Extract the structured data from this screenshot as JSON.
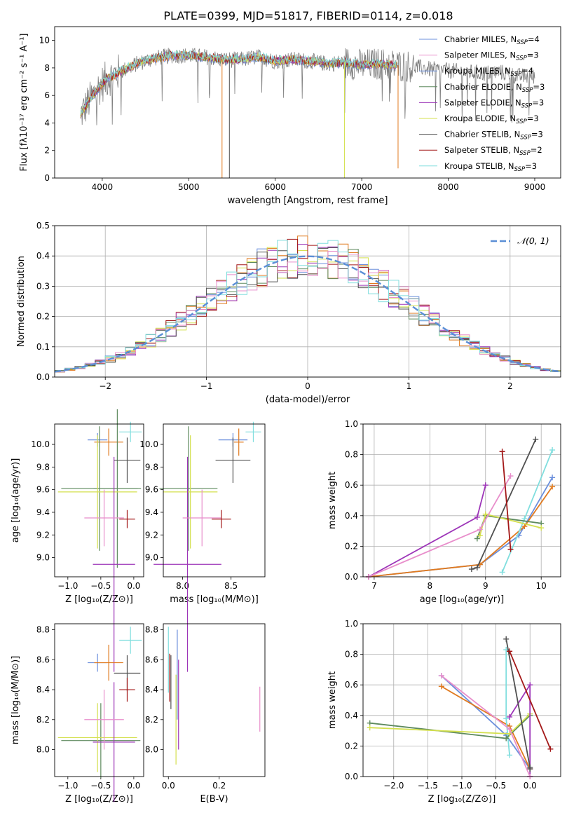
{
  "title": "PLATE=0399, MJD=51817, FIBERID=0114, z=0.018",
  "colors": {
    "Chabrier MILES": "#6b8fdc",
    "Salpeter MILES": "#e07a1f",
    "Kroupa MILES": "#7fe0e0",
    "Chabrier ELODIE": "#5e8a5e",
    "Salpeter ELODIE": "#9d35b8",
    "Kroupa ELODIE": "#d4e04e",
    "Chabrier STELIB": "#505050",
    "Salpeter STELIB": "#a31818",
    "Kroupa STELIB": "#80dede",
    "gaussian": "#5b8fd6",
    "data": "#808080"
  },
  "chart_data": [
    {
      "id": "spectrum",
      "type": "line",
      "xlabel": "wavelength [Angstrom, rest frame]",
      "ylabel": "Flux [fλ10⁻¹⁷ erg cm⁻² s⁻¹ A⁻¹]",
      "xlim": [
        3450,
        9300
      ],
      "ylim": [
        0,
        11
      ],
      "xticks": [
        4000,
        5000,
        6000,
        7000,
        8000,
        9000
      ],
      "yticks": [
        0,
        2,
        4,
        6,
        8,
        10
      ],
      "legend_position": "top-right",
      "legend": [
        {
          "label": "Chabrier MILES, N",
          "sub": "SSP",
          "suffix": "=4",
          "color": "#6b8fdc"
        },
        {
          "label": "Salpeter MILES, N",
          "sub": "SSP",
          "suffix": "=3",
          "color": "#e88ecb"
        },
        {
          "label": "Kroupa MILES, N",
          "sub": "SSP",
          "suffix": "=4",
          "color": "#6b8fdc"
        },
        {
          "label": "Chabrier ELODIE, N",
          "sub": "SSP",
          "suffix": "=3",
          "color": "#5e8a5e"
        },
        {
          "label": "Salpeter ELODIE, N",
          "sub": "SSP",
          "suffix": "=3",
          "color": "#9d35b8"
        },
        {
          "label": "Kroupa ELODIE, N",
          "sub": "SSP",
          "suffix": "=3",
          "color": "#d4e04e"
        },
        {
          "label": "Chabrier STELIB, N",
          "sub": "SSP",
          "suffix": "=3",
          "color": "#505050"
        },
        {
          "label": "Salpeter STELIB, N",
          "sub": "SSP",
          "suffix": "=2",
          "color": "#a31818"
        },
        {
          "label": "Kroupa STELIB, N",
          "sub": "SSP",
          "suffix": "=3",
          "color": "#80dede"
        }
      ],
      "continuum_x": [
        3750,
        3850,
        3950,
        4050,
        4200,
        4400,
        4600,
        4800,
        5000,
        5200,
        5400,
        5600,
        5800,
        6000,
        6200,
        6400,
        6600,
        6800,
        7000,
        7200,
        7400,
        7600,
        7800,
        8000,
        8200,
        8400,
        8600,
        8800,
        9000
      ],
      "continuum_y": [
        4.6,
        5.6,
        6.5,
        7.2,
        7.7,
        8.3,
        8.7,
        8.9,
        8.9,
        8.8,
        8.6,
        8.6,
        8.8,
        8.5,
        8.6,
        8.5,
        8.3,
        8.4,
        8.2,
        8.3,
        8.2,
        8.1,
        7.9,
        7.8,
        7.7,
        7.6,
        7.7,
        7.4,
        7.4
      ],
      "model_x_end": [
        7420,
        7420,
        7420,
        7420,
        7420,
        7420,
        7420,
        7420,
        7420
      ],
      "spikes": [
        {
          "x": 5385,
          "y0": 0,
          "color": "#e07a1f"
        },
        {
          "x": 5470,
          "y0": 0,
          "color": "#505050"
        },
        {
          "x": 6800,
          "y0": 0,
          "color": "#d4e04e"
        },
        {
          "x": 7420,
          "y0": 0.7,
          "color": "#e07a1f"
        }
      ]
    },
    {
      "id": "residuals",
      "type": "histogram",
      "xlabel": "(data-model)/error",
      "ylabel": "Normed distribution",
      "xlim": [
        -2.5,
        2.5
      ],
      "ylim": [
        0,
        0.5
      ],
      "xticks": [
        -2,
        -1,
        0,
        1,
        2
      ],
      "yticks": [
        0.0,
        0.1,
        0.2,
        0.3,
        0.4,
        0.5
      ],
      "grid": true,
      "legend_position": "top-right",
      "legend_label": "𝒩(0, 1)",
      "bin_width": 0.1
    },
    {
      "id": "age-Z",
      "type": "scatter",
      "xlabel": "Z [log₁₀(Z/Z⊙)]",
      "ylabel": "age  [log₁₀(age/yr)]",
      "xlim": [
        -1.2,
        0.15
      ],
      "ylim": [
        8.83,
        10.18
      ],
      "xticks": [
        -1.0,
        -0.5,
        0.0
      ],
      "yticks": [
        9.0,
        9.2,
        9.4,
        9.6,
        9.8,
        10.0
      ],
      "points": [
        {
          "x": -0.55,
          "y": 10.04,
          "xerr": 0.15,
          "yerr": 0.06,
          "color": "#6b8fdc"
        },
        {
          "x": -0.38,
          "y": 10.02,
          "xerr": 0.22,
          "yerr": 0.12,
          "color": "#e07a1f"
        },
        {
          "x": -0.05,
          "y": 10.11,
          "xerr": 0.17,
          "yerr": 0.09,
          "color": "#80dede"
        },
        {
          "x": -0.52,
          "y": 9.61,
          "xerr": 0.58,
          "yerr": 0.55,
          "color": "#5e8a5e"
        },
        {
          "x": -0.25,
          "y": 9.61,
          "xerr": 0.36,
          "yerr": 0.7,
          "color": "#5e8a5e"
        },
        {
          "x": -0.55,
          "y": 9.58,
          "xerr": 0.6,
          "yerr": 0.5,
          "color": "#d4e04e"
        },
        {
          "x": -0.3,
          "y": 8.94,
          "xerr": 0.32,
          "yerr": 0.95,
          "color": "#9d35b8"
        },
        {
          "x": -0.1,
          "y": 9.86,
          "xerr": 0.2,
          "yerr": 0.2,
          "color": "#505050"
        },
        {
          "x": -0.45,
          "y": 9.35,
          "xerr": 0.3,
          "yerr": 0.25,
          "color": "#e88ecb"
        },
        {
          "x": -0.1,
          "y": 9.34,
          "xerr": 0.12,
          "yerr": 0.08,
          "color": "#a31818"
        }
      ]
    },
    {
      "id": "age-mass",
      "type": "scatter",
      "xlabel": "mass [log₁₀(M/M⊙)]",
      "ylabel": "",
      "xlim": [
        7.8,
        8.85
      ],
      "ylim": [
        8.83,
        10.18
      ],
      "xticks": [
        8.0,
        8.5
      ],
      "yticks": [
        9.0,
        9.2,
        9.4,
        9.6,
        9.8,
        10.0
      ],
      "points": [
        {
          "x": 8.52,
          "y": 10.04,
          "xerr": 0.15,
          "yerr": 0.06,
          "color": "#6b8fdc"
        },
        {
          "x": 8.58,
          "y": 10.02,
          "xerr": 0.05,
          "yerr": 0.12,
          "color": "#e07a1f"
        },
        {
          "x": 8.73,
          "y": 10.11,
          "xerr": 0.08,
          "yerr": 0.09,
          "color": "#80dede"
        },
        {
          "x": 8.06,
          "y": 9.61,
          "xerr": 0.3,
          "yerr": 0.55,
          "color": "#5e8a5e"
        },
        {
          "x": 8.08,
          "y": 9.58,
          "xerr": 0.28,
          "yerr": 0.5,
          "color": "#d4e04e"
        },
        {
          "x": 8.05,
          "y": 8.94,
          "xerr": 0.35,
          "yerr": 0.95,
          "color": "#9d35b8"
        },
        {
          "x": 8.52,
          "y": 9.86,
          "xerr": 0.18,
          "yerr": 0.2,
          "color": "#505050"
        },
        {
          "x": 8.2,
          "y": 9.35,
          "xerr": 0.2,
          "yerr": 0.25,
          "color": "#e88ecb"
        },
        {
          "x": 8.4,
          "y": 9.34,
          "xerr": 0.1,
          "yerr": 0.08,
          "color": "#a31818"
        }
      ]
    },
    {
      "id": "weight-age",
      "type": "line",
      "xlabel": "age  [log₁₀(age/yr)]",
      "ylabel": "mass weight",
      "xlim": [
        6.8,
        10.35
      ],
      "ylim": [
        0,
        1.0
      ],
      "xticks": [
        7,
        8,
        9,
        10
      ],
      "yticks": [
        0.0,
        0.2,
        0.4,
        0.6,
        0.8,
        1.0
      ],
      "grid": true,
      "series": [
        {
          "color": "#6b8fdc",
          "x": [
            6.9,
            8.9,
            9.6,
            10.2
          ],
          "y": [
            0.0,
            0.08,
            0.27,
            0.65
          ]
        },
        {
          "color": "#e07a1f",
          "x": [
            6.9,
            8.9,
            9.7,
            10.2
          ],
          "y": [
            0.0,
            0.08,
            0.33,
            0.59
          ]
        },
        {
          "color": "#80dede",
          "x": [
            9.3,
            9.7,
            10.2
          ],
          "y": [
            0.03,
            0.38,
            0.83
          ]
        },
        {
          "color": "#5e8a5e",
          "x": [
            8.85,
            9.0,
            10.0
          ],
          "y": [
            0.25,
            0.4,
            0.35
          ]
        },
        {
          "color": "#d4e04e",
          "x": [
            8.9,
            9.0,
            10.0
          ],
          "y": [
            0.27,
            0.41,
            0.32
          ]
        },
        {
          "color": "#9d35b8",
          "x": [
            6.9,
            8.85,
            9.0
          ],
          "y": [
            0.0,
            0.39,
            0.6
          ]
        },
        {
          "color": "#505050",
          "x": [
            8.75,
            8.85,
            9.9
          ],
          "y": [
            0.05,
            0.06,
            0.9
          ]
        },
        {
          "color": "#e88ecb",
          "x": [
            6.9,
            8.9,
            9.45
          ],
          "y": [
            0.0,
            0.31,
            0.66
          ]
        },
        {
          "color": "#a31818",
          "x": [
            9.3,
            9.45
          ],
          "y": [
            0.82,
            0.18
          ]
        }
      ]
    },
    {
      "id": "mass-Z",
      "type": "scatter",
      "xlabel": "Z [log₁₀(Z/Z⊙)]",
      "ylabel": "mass [log₁₀(M/M⊙)]",
      "xlim": [
        -1.2,
        0.15
      ],
      "ylim": [
        7.82,
        8.84
      ],
      "xticks": [
        -1.0,
        -0.5,
        0.0
      ],
      "yticks": [
        8.0,
        8.2,
        8.4,
        8.6,
        8.8
      ],
      "points": [
        {
          "x": -0.55,
          "y": 8.58,
          "xerr": 0.15,
          "yerr": 0.06,
          "color": "#6b8fdc"
        },
        {
          "x": -0.38,
          "y": 8.58,
          "xerr": 0.22,
          "yerr": 0.12,
          "color": "#e07a1f"
        },
        {
          "x": -0.05,
          "y": 8.73,
          "xerr": 0.17,
          "yerr": 0.09,
          "color": "#80dede"
        },
        {
          "x": -0.5,
          "y": 8.06,
          "xerr": 0.6,
          "yerr": 0.25,
          "color": "#5e8a5e"
        },
        {
          "x": -0.55,
          "y": 8.08,
          "xerr": 0.6,
          "yerr": 0.23,
          "color": "#d4e04e"
        },
        {
          "x": -0.3,
          "y": 8.05,
          "xerr": 0.32,
          "yerr": 0.4,
          "color": "#9d35b8"
        },
        {
          "x": -0.1,
          "y": 8.51,
          "xerr": 0.2,
          "yerr": 0.12,
          "color": "#505050"
        },
        {
          "x": -0.45,
          "y": 8.2,
          "xerr": 0.3,
          "yerr": 0.2,
          "color": "#e88ecb"
        },
        {
          "x": -0.1,
          "y": 8.4,
          "xerr": 0.12,
          "yerr": 0.08,
          "color": "#a31818"
        }
      ]
    },
    {
      "id": "mass-EBV",
      "type": "scatter",
      "xlabel": "E(B-V)",
      "ylabel": "",
      "xlim": [
        -0.02,
        0.38
      ],
      "ylim": [
        7.82,
        8.84
      ],
      "xticks": [
        0.0,
        0.2
      ],
      "yticks": [
        8.0,
        8.2,
        8.4,
        8.6,
        8.8
      ],
      "points": [
        {
          "x": 0.005,
          "y": 8.48,
          "xerr": 0,
          "yerr": 0.16,
          "color": "#a31818"
        },
        {
          "x": 0.01,
          "y": 8.45,
          "xerr": 0,
          "yerr": 0.18,
          "color": "#505050"
        },
        {
          "x": 0.035,
          "y": 8.5,
          "xerr": 0,
          "yerr": 0.3,
          "color": "#6b8fdc"
        },
        {
          "x": 0.03,
          "y": 8.2,
          "xerr": 0,
          "yerr": 0.3,
          "color": "#d4e04e"
        },
        {
          "x": 0.04,
          "y": 8.3,
          "xerr": 0,
          "yerr": 0.3,
          "color": "#9d35b8"
        },
        {
          "x": 0.0,
          "y": 8.6,
          "xerr": 0,
          "yerr": 0.22,
          "color": "#80dede"
        },
        {
          "x": 0.36,
          "y": 8.27,
          "xerr": 0,
          "yerr": 0.15,
          "color": "#e88ecb"
        }
      ]
    },
    {
      "id": "weight-Z",
      "type": "line",
      "xlabel": "Z [log₁₀(Z/Z⊙)]",
      "ylabel": "mass weight",
      "xlim": [
        -2.45,
        0.45
      ],
      "ylim": [
        0,
        1.0
      ],
      "xticks": [
        -2.0,
        -1.5,
        -1.0,
        -0.5,
        0.0
      ],
      "yticks": [
        0.0,
        0.2,
        0.4,
        0.6,
        0.8,
        1.0
      ],
      "grid": true,
      "series": [
        {
          "color": "#6b8fdc",
          "x": [
            -1.3,
            -0.35,
            0.0
          ],
          "y": [
            0.66,
            0.27,
            0.05
          ]
        },
        {
          "color": "#e07a1f",
          "x": [
            -1.3,
            -0.3,
            0.0
          ],
          "y": [
            0.59,
            0.33,
            0.05
          ]
        },
        {
          "color": "#80dede",
          "x": [
            -0.35,
            -0.35,
            -0.3
          ],
          "y": [
            0.83,
            0.38,
            0.14
          ]
        },
        {
          "color": "#5e8a5e",
          "x": [
            -2.35,
            -0.35,
            0.0
          ],
          "y": [
            0.35,
            0.25,
            0.4
          ]
        },
        {
          "color": "#d4e04e",
          "x": [
            -2.35,
            -0.3,
            0.0
          ],
          "y": [
            0.32,
            0.28,
            0.41
          ]
        },
        {
          "color": "#9d35b8",
          "x": [
            -0.3,
            0.0,
            0.0
          ],
          "y": [
            0.39,
            0.6,
            0.0
          ]
        },
        {
          "color": "#505050",
          "x": [
            -0.35,
            0.0,
            0.0
          ],
          "y": [
            0.9,
            0.06,
            0.05
          ]
        },
        {
          "color": "#e88ecb",
          "x": [
            -1.3,
            -0.3,
            0.0
          ],
          "y": [
            0.66,
            0.31,
            0.0
          ]
        },
        {
          "color": "#a31818",
          "x": [
            -0.3,
            0.3
          ],
          "y": [
            0.82,
            0.18
          ]
        }
      ]
    }
  ]
}
